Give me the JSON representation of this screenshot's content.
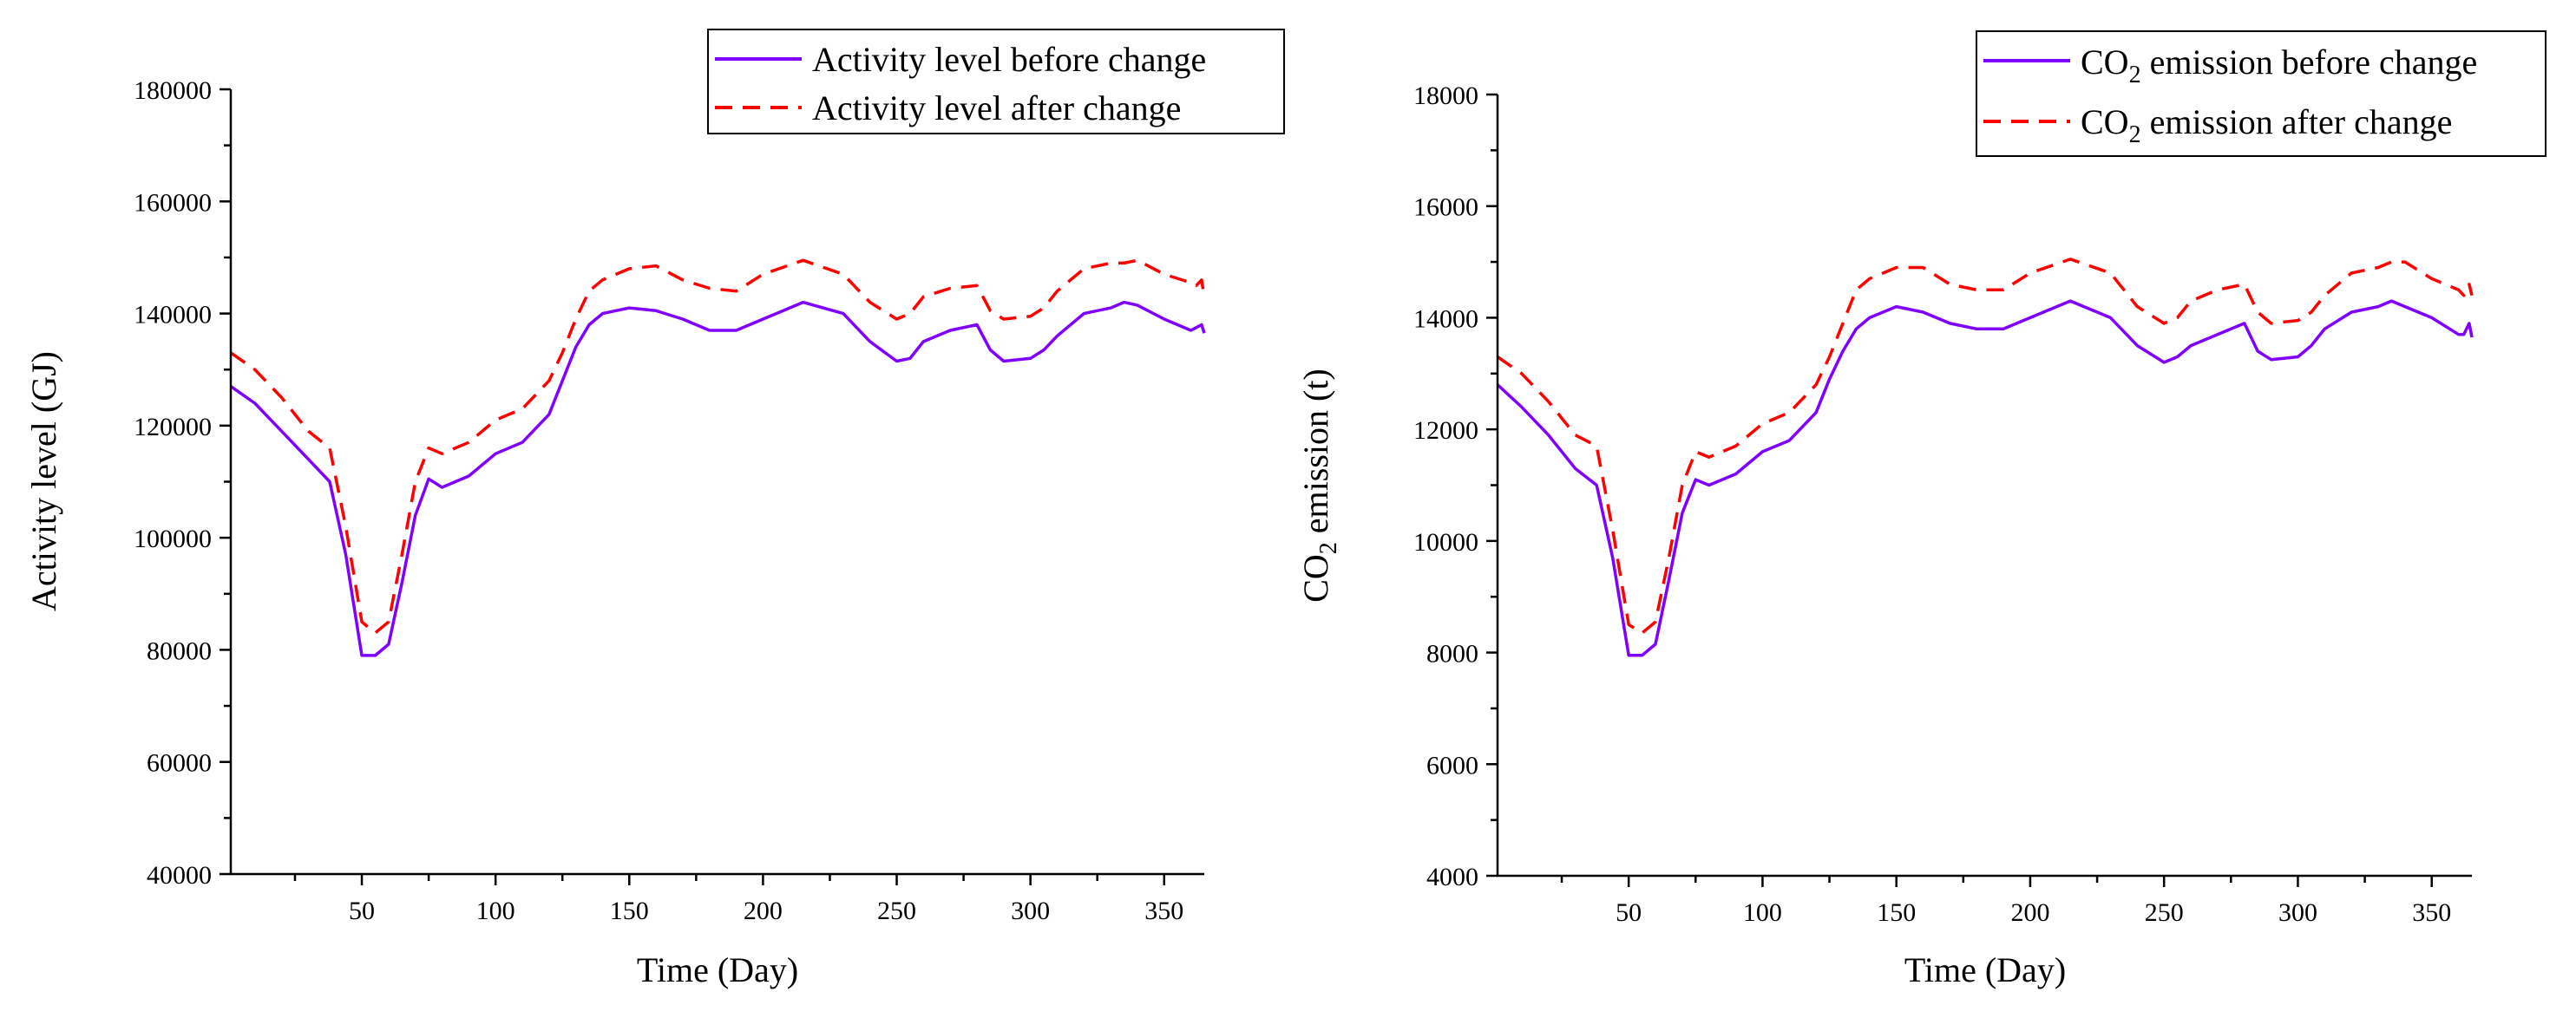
{
  "colors": {
    "before": "#7f00ff",
    "after": "#ff0000"
  },
  "chart_data": [
    {
      "type": "line",
      "ylabel": "Activity level (GJ)",
      "xlabel": "Time (Day)",
      "xlim": [
        1,
        365
      ],
      "ylim": [
        40000,
        180000
      ],
      "xticks": [
        50,
        100,
        150,
        200,
        250,
        300,
        350
      ],
      "yticks": [
        40000,
        60000,
        80000,
        100000,
        120000,
        140000,
        160000,
        180000
      ],
      "grid": false,
      "legend_position": "top-right",
      "x": [
        1,
        10,
        20,
        30,
        38,
        44,
        50,
        55,
        60,
        65,
        70,
        75,
        80,
        90,
        100,
        110,
        120,
        125,
        130,
        135,
        140,
        150,
        160,
        170,
        180,
        190,
        200,
        215,
        230,
        240,
        250,
        255,
        260,
        270,
        280,
        285,
        290,
        300,
        305,
        310,
        320,
        330,
        335,
        340,
        350,
        360,
        362,
        364,
        365
      ],
      "series": [
        {
          "name": "Activity level before change",
          "style": "solid",
          "values": [
            127000,
            124000,
            119000,
            114000,
            110000,
            97000,
            79000,
            79000,
            81000,
            92000,
            104000,
            110500,
            109000,
            111000,
            115000,
            117000,
            122000,
            128000,
            134000,
            138000,
            140000,
            141000,
            140500,
            139000,
            137000,
            137000,
            139000,
            142000,
            140000,
            135000,
            131500,
            132000,
            135000,
            137000,
            138000,
            133500,
            131500,
            132000,
            133500,
            136000,
            140000,
            141000,
            142000,
            141500,
            139000,
            137000,
            137500,
            138000,
            136500
          ]
        },
        {
          "name": "Activity level after change",
          "style": "dashed",
          "values": [
            133000,
            130000,
            125000,
            119000,
            116000,
            102000,
            85000,
            83000,
            85000,
            97000,
            110000,
            116000,
            115000,
            117000,
            121000,
            123000,
            128000,
            133000,
            139000,
            144000,
            146000,
            148000,
            148500,
            146000,
            144500,
            144000,
            147000,
            149500,
            147000,
            142000,
            139000,
            140000,
            143000,
            144500,
            145000,
            140500,
            139000,
            139500,
            141000,
            144000,
            148000,
            149000,
            149000,
            149500,
            147000,
            145500,
            145000,
            146000,
            143000
          ]
        }
      ]
    },
    {
      "type": "line",
      "ylabel": "CO2 emission (t)",
      "xlabel": "Time (Day)",
      "xlim": [
        1,
        365
      ],
      "ylim": [
        4000,
        18000
      ],
      "xticks": [
        50,
        100,
        150,
        200,
        250,
        300,
        350
      ],
      "yticks": [
        4000,
        6000,
        8000,
        10000,
        12000,
        14000,
        16000,
        18000
      ],
      "grid": false,
      "legend_position": "top-right",
      "x": [
        1,
        10,
        20,
        30,
        38,
        44,
        50,
        55,
        60,
        65,
        70,
        75,
        80,
        90,
        100,
        110,
        120,
        125,
        130,
        135,
        140,
        150,
        160,
        170,
        180,
        190,
        200,
        215,
        230,
        240,
        250,
        255,
        260,
        270,
        280,
        285,
        290,
        300,
        305,
        310,
        320,
        330,
        335,
        340,
        350,
        360,
        362,
        364,
        365
      ],
      "series": [
        {
          "name": "CO2 emission before change",
          "style": "solid",
          "values": [
            12800,
            12400,
            11900,
            11300,
            11000,
            9700,
            7950,
            7950,
            8150,
            9300,
            10500,
            11100,
            11000,
            11200,
            11600,
            11800,
            12300,
            12900,
            13400,
            13800,
            14000,
            14200,
            14100,
            13900,
            13800,
            13800,
            14000,
            14300,
            14000,
            13500,
            13200,
            13300,
            13500,
            13700,
            13900,
            13400,
            13250,
            13300,
            13500,
            13800,
            14100,
            14200,
            14300,
            14200,
            14000,
            13700,
            13700,
            13900,
            13650
          ]
        },
        {
          "name": "CO2 emission after change",
          "style": "dashed",
          "values": [
            13300,
            13000,
            12500,
            11900,
            11700,
            10200,
            8500,
            8350,
            8550,
            9700,
            11000,
            11600,
            11500,
            11700,
            12100,
            12300,
            12800,
            13300,
            13900,
            14500,
            14700,
            14900,
            14900,
            14600,
            14500,
            14500,
            14800,
            15050,
            14800,
            14200,
            13900,
            14000,
            14300,
            14500,
            14600,
            14100,
            13900,
            13950,
            14100,
            14400,
            14800,
            14900,
            15000,
            15000,
            14700,
            14500,
            14400,
            14600,
            14400
          ]
        }
      ]
    }
  ],
  "panels": [
    {
      "xlabel": "Time (Day)",
      "ylabel": "Activity level (GJ)",
      "legend": [
        "Activity level before change",
        "Activity level after change"
      ]
    },
    {
      "xlabel": "Time (Day)",
      "ylabel_parts": [
        "CO",
        "2",
        " emission (t)"
      ],
      "legend": [
        [
          "CO",
          "2",
          " emission before change"
        ],
        [
          "CO",
          "2",
          " emission after change"
        ]
      ]
    }
  ]
}
